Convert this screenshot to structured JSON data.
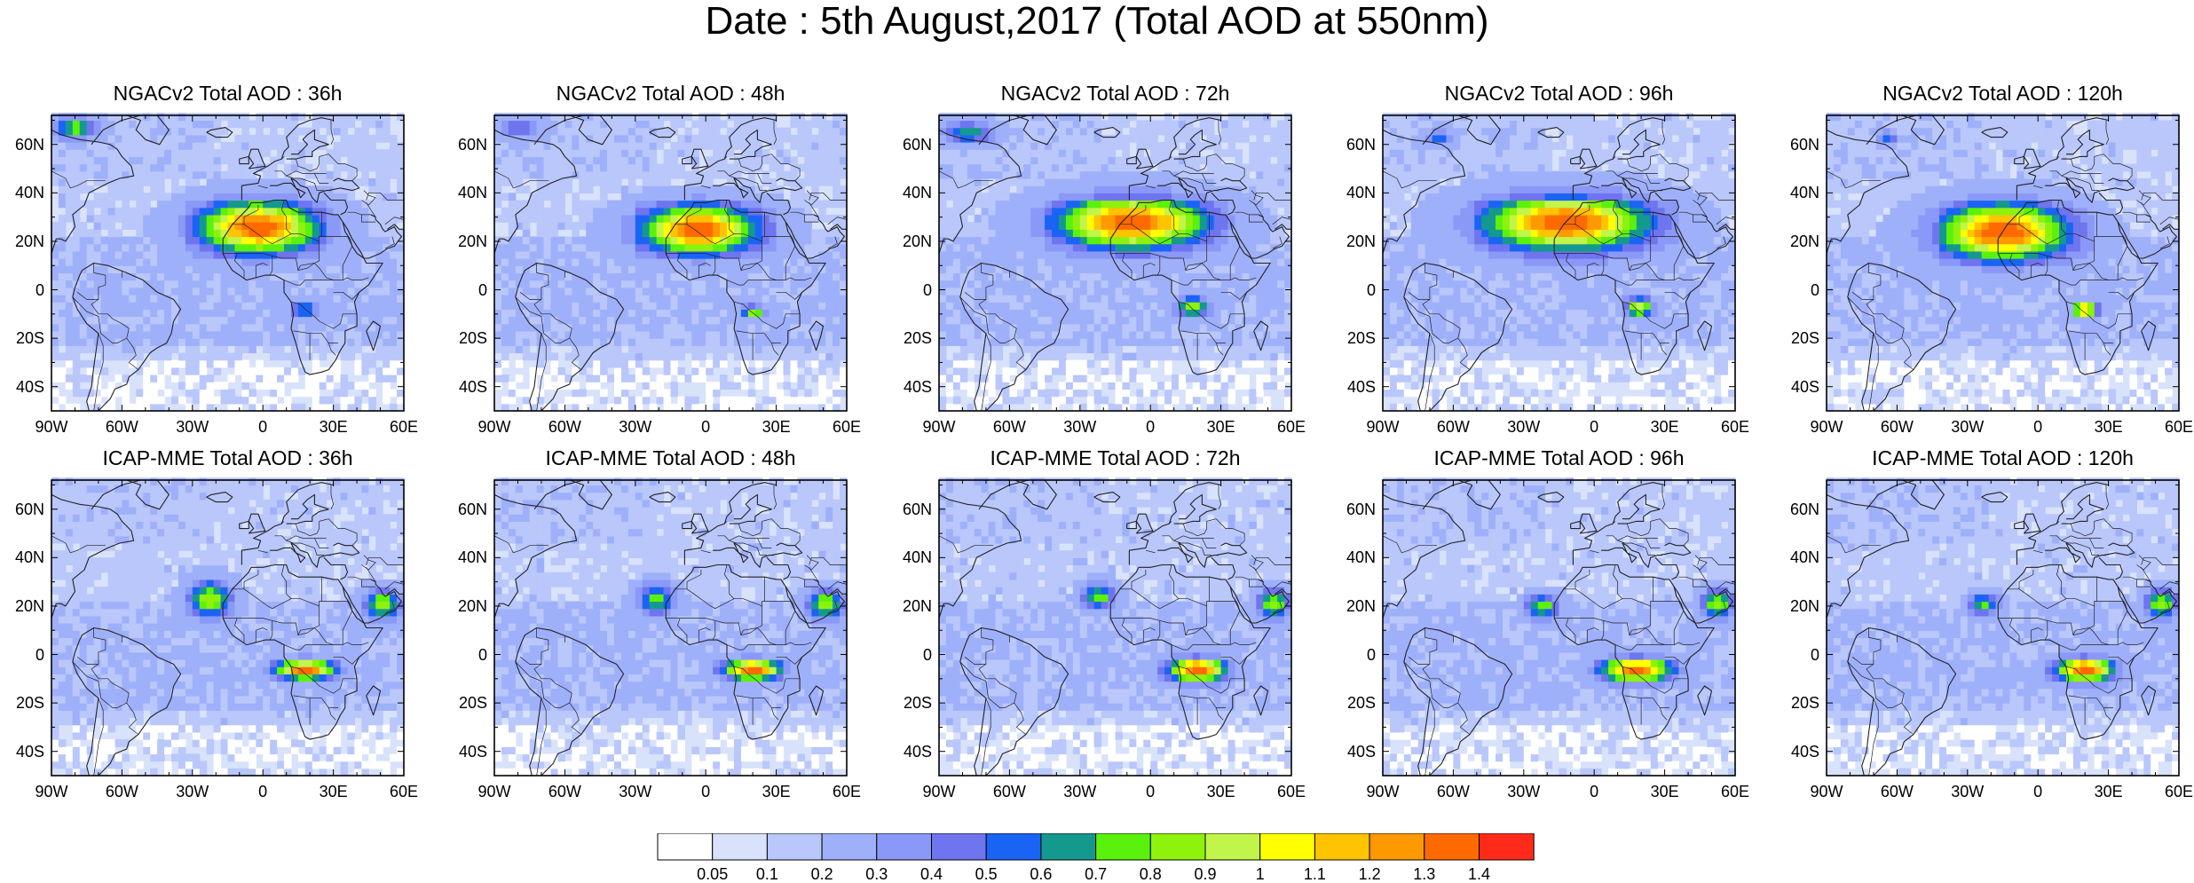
{
  "title": "Date : 5th August,2017 (Total AOD at 550nm)",
  "rows": [
    {
      "model": "NGACv2",
      "panels": [
        {
          "title": "NGACv2 Total AOD : 36h",
          "lead": "36h"
        },
        {
          "title": "NGACv2 Total AOD : 48h",
          "lead": "48h"
        },
        {
          "title": "NGACv2 Total AOD : 72h",
          "lead": "72h"
        },
        {
          "title": "NGACv2 Total AOD : 96h",
          "lead": "96h"
        },
        {
          "title": "NGACv2 Total AOD : 120h",
          "lead": "120h"
        }
      ]
    },
    {
      "model": "ICAP-MME",
      "panels": [
        {
          "title": "ICAP-MME Total AOD : 36h",
          "lead": "36h"
        },
        {
          "title": "ICAP-MME Total AOD : 48h",
          "lead": "48h"
        },
        {
          "title": "ICAP-MME Total AOD : 72h",
          "lead": "72h"
        },
        {
          "title": "ICAP-MME Total AOD : 96h",
          "lead": "96h"
        },
        {
          "title": "ICAP-MME Total AOD : 120h",
          "lead": "120h"
        }
      ]
    }
  ],
  "chart_data": {
    "type": "heatmap",
    "title": "Date : 5th August,2017 (Total AOD at 550nm)",
    "xlim": [
      -90,
      60
    ],
    "ylim": [
      -50,
      72
    ],
    "x_ticks": [
      {
        "value": -90,
        "label": "90W"
      },
      {
        "value": -60,
        "label": "60W"
      },
      {
        "value": -30,
        "label": "30W"
      },
      {
        "value": 0,
        "label": "0"
      },
      {
        "value": 30,
        "label": "30E"
      },
      {
        "value": 60,
        "label": "60E"
      }
    ],
    "y_ticks": [
      {
        "value": 60,
        "label": "60N"
      },
      {
        "value": 40,
        "label": "40N"
      },
      {
        "value": 20,
        "label": "20N"
      },
      {
        "value": 0,
        "label": "0"
      },
      {
        "value": -20,
        "label": "20S"
      },
      {
        "value": -40,
        "label": "40S"
      }
    ],
    "colorbar": {
      "levels": [
        "0.05",
        "0.1",
        "0.2",
        "0.3",
        "0.4",
        "0.5",
        "0.6",
        "0.7",
        "0.8",
        "0.9",
        "1",
        "1.1",
        "1.2",
        "1.3",
        "1.4"
      ],
      "colors": [
        "#ffffff",
        "#d9e2fb",
        "#b9c7fb",
        "#9fb0fa",
        "#8a99f7",
        "#6f74ef",
        "#1a64f5",
        "#14998f",
        "#5af20c",
        "#8ef20c",
        "#c2f54a",
        "#ffff00",
        "#ffc300",
        "#ff9900",
        "#ff6a00",
        "#ff2a1a"
      ]
    },
    "background_aod_level": 1,
    "approximate_features": [
      {
        "model": "NGACv2",
        "panels": [
          {
            "lead": "36h",
            "features": [
              {
                "region": "saharan_dust_plume",
                "lon_range": [
                  -33,
                  28
                ],
                "lat_range": [
                  12,
                  38
                ],
                "peak_aod": 1.4,
                "peak_lon": -2,
                "peak_lat": 26
              },
              {
                "region": "central_africa_smoke",
                "lon_range": [
                  10,
                  25
                ],
                "lat_range": [
                  -12,
                  -4
                ],
                "peak_aod": 0.7
              },
              {
                "region": "north_america_smoke",
                "lon_range": [
                  -90,
                  -70
                ],
                "lat_range": [
                  62,
                  72
                ],
                "peak_aod": 0.8
              }
            ]
          },
          {
            "lead": "48h",
            "features": [
              {
                "region": "saharan_dust_plume",
                "lon_range": [
                  -30,
                  30
                ],
                "lat_range": [
                  12,
                  36
                ],
                "peak_aod": 1.4,
                "peak_lon": -3,
                "peak_lat": 25
              },
              {
                "region": "central_africa_smoke",
                "lon_range": [
                  14,
                  26
                ],
                "lat_range": [
                  -12,
                  -6
                ],
                "peak_aod": 0.9
              },
              {
                "region": "north_america_smoke",
                "lon_range": [
                  -90,
                  -70
                ],
                "lat_range": [
                  62,
                  72
                ],
                "peak_aod": 0.5
              }
            ]
          },
          {
            "lead": "72h",
            "features": [
              {
                "region": "saharan_dust_plume",
                "lon_range": [
                  -45,
                  32
                ],
                "lat_range": [
                  12,
                  38
                ],
                "peak_aod": 1.4,
                "peak_lon": -8,
                "peak_lat": 28
              },
              {
                "region": "central_africa_smoke",
                "lon_range": [
                  10,
                  26
                ],
                "lat_range": [
                  -12,
                  -2
                ],
                "peak_aod": 0.9
              },
              {
                "region": "north_america_smoke",
                "lon_range": [
                  -90,
                  -65
                ],
                "lat_range": [
                  60,
                  70
                ],
                "peak_aod": 0.7
              }
            ]
          },
          {
            "lead": "96h",
            "features": [
              {
                "region": "saharan_dust_plume",
                "lon_range": [
                  -50,
                  35
                ],
                "lat_range": [
                  10,
                  38
                ],
                "peak_aod": 1.4,
                "peak_lon": -12,
                "peak_lat": 28
              },
              {
                "region": "central_africa_smoke",
                "lon_range": [
                  12,
                  26
                ],
                "lat_range": [
                  -12,
                  -2
                ],
                "peak_aod": 1.0
              },
              {
                "region": "north_america_smoke",
                "lon_range": [
                  -72,
                  -60
                ],
                "lat_range": [
                  60,
                  66
                ],
                "peak_aod": 0.6
              }
            ]
          },
          {
            "lead": "120h",
            "features": [
              {
                "region": "saharan_dust_plume",
                "lon_range": [
                  -42,
                  25
                ],
                "lat_range": [
                  10,
                  38
                ],
                "peak_aod": 1.4,
                "peak_lon": -15,
                "peak_lat": 24
              },
              {
                "region": "central_africa_smoke",
                "lon_range": [
                  14,
                  26
                ],
                "lat_range": [
                  -12,
                  -4
                ],
                "peak_aod": 1.3
              },
              {
                "region": "north_america_smoke",
                "lon_range": [
                  -68,
                  -60
                ],
                "lat_range": [
                  60,
                  66
                ],
                "peak_aod": 0.6
              }
            ]
          }
        ]
      },
      {
        "model": "ICAP-MME",
        "panels": [
          {
            "lead": "36h",
            "features": [
              {
                "region": "west_africa_dust",
                "lon_range": [
                  -33,
                  -12
                ],
                "lat_range": [
                  14,
                  32
                ],
                "peak_aod": 0.9
              },
              {
                "region": "arabian_dust",
                "lon_range": [
                  42,
                  60
                ],
                "lat_range": [
                  14,
                  28
                ],
                "peak_aod": 0.9
              },
              {
                "region": "central_africa_smoke",
                "lon_range": [
                  3,
                  33
                ],
                "lat_range": [
                  -12,
                  -2
                ],
                "peak_aod": 1.4,
                "peak_lon": 18,
                "peak_lat": -6
              }
            ]
          },
          {
            "lead": "48h",
            "features": [
              {
                "region": "west_africa_dust",
                "lon_range": [
                  -30,
                  -12
                ],
                "lat_range": [
                  16,
                  30
                ],
                "peak_aod": 0.8
              },
              {
                "region": "arabian_dust",
                "lon_range": [
                  42,
                  60
                ],
                "lat_range": [
                  14,
                  28
                ],
                "peak_aod": 0.9
              },
              {
                "region": "central_africa_smoke",
                "lon_range": [
                  3,
                  33
                ],
                "lat_range": [
                  -12,
                  -2
                ],
                "peak_aod": 1.4,
                "peak_lon": 20,
                "peak_lat": -6
              }
            ]
          },
          {
            "lead": "72h",
            "features": [
              {
                "region": "west_africa_dust",
                "lon_range": [
                  -30,
                  -14
                ],
                "lat_range": [
                  18,
                  30
                ],
                "peak_aod": 0.8
              },
              {
                "region": "arabian_dust",
                "lon_range": [
                  45,
                  60
                ],
                "lat_range": [
                  14,
                  28
                ],
                "peak_aod": 0.9
              },
              {
                "region": "central_africa_smoke",
                "lon_range": [
                  3,
                  33
                ],
                "lat_range": [
                  -14,
                  -2
                ],
                "peak_aod": 1.4,
                "peak_lon": 20,
                "peak_lat": -6
              }
            ]
          },
          {
            "lead": "96h",
            "features": [
              {
                "region": "west_africa_dust",
                "lon_range": [
                  -30,
                  -14
                ],
                "lat_range": [
                  14,
                  26
                ],
                "peak_aod": 0.8
              },
              {
                "region": "arabian_dust",
                "lon_range": [
                  45,
                  60
                ],
                "lat_range": [
                  14,
                  28
                ],
                "peak_aod": 0.9
              },
              {
                "region": "central_africa_smoke",
                "lon_range": [
                  0,
                  36
                ],
                "lat_range": [
                  -14,
                  -2
                ],
                "peak_aod": 1.4,
                "peak_lon": 18,
                "peak_lat": -6
              }
            ]
          },
          {
            "lead": "120h",
            "features": [
              {
                "region": "west_africa_dust",
                "lon_range": [
                  -30,
                  -16
                ],
                "lat_range": [
                  16,
                  26
                ],
                "peak_aod": 0.8
              },
              {
                "region": "arabian_dust",
                "lon_range": [
                  45,
                  60
                ],
                "lat_range": [
                  14,
                  28
                ],
                "peak_aod": 0.9
              },
              {
                "region": "central_africa_smoke",
                "lon_range": [
                  3,
                  33
                ],
                "lat_range": [
                  -14,
                  -2
                ],
                "peak_aod": 1.4,
                "peak_lon": 20,
                "peak_lat": -6
              }
            ]
          }
        ]
      }
    ]
  }
}
